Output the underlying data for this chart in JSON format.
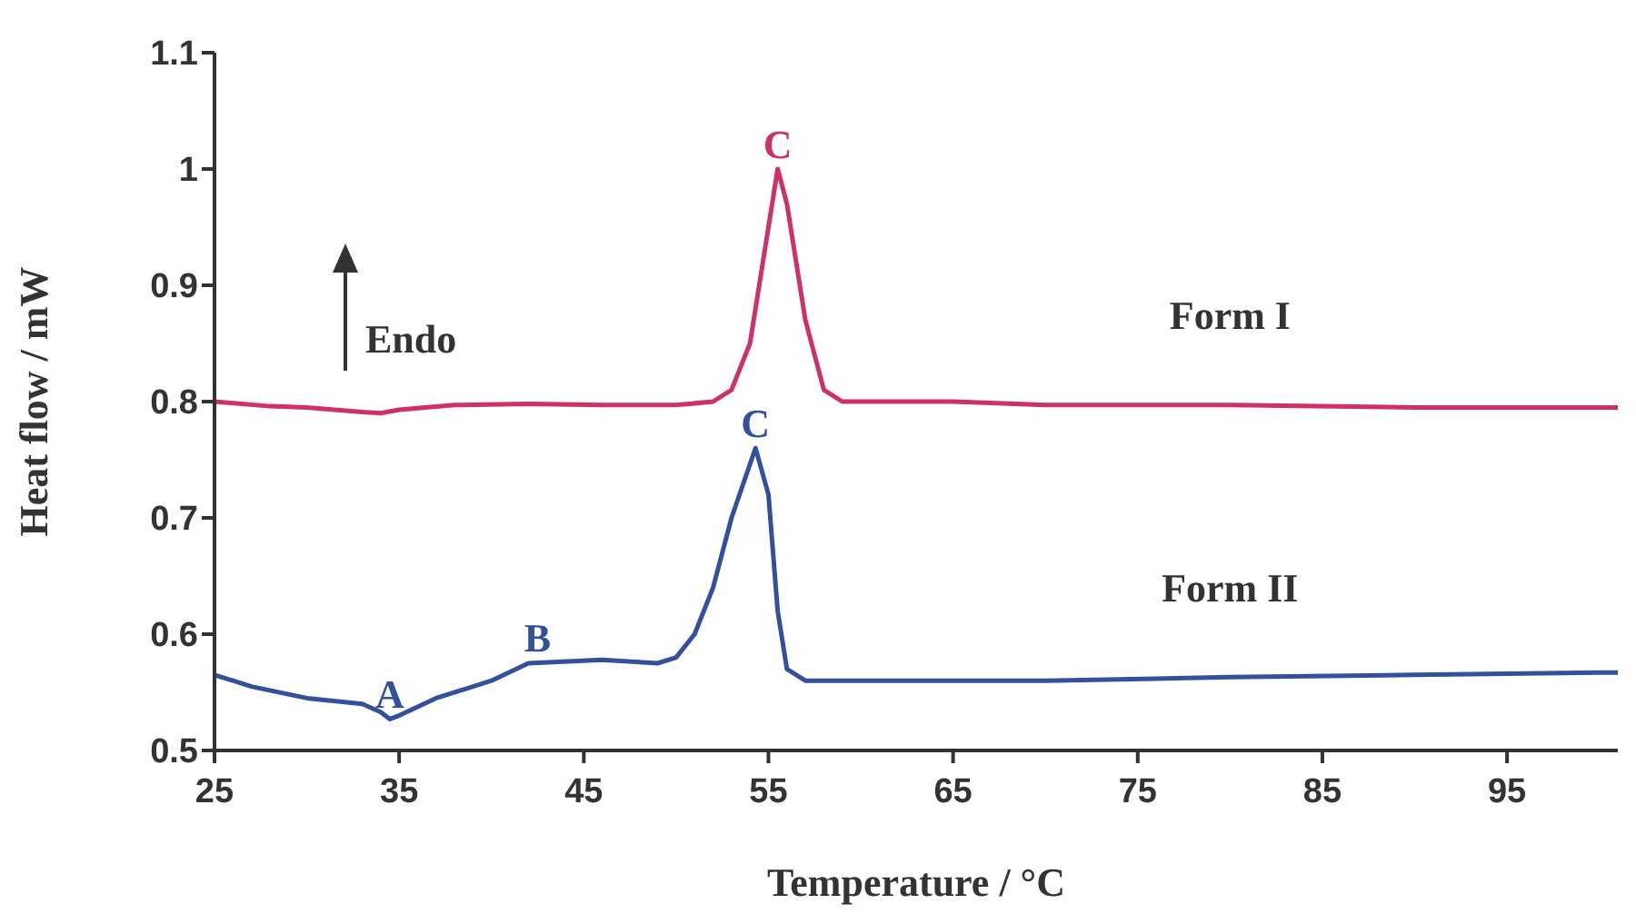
{
  "chart_data": {
    "type": "line",
    "xlabel": "Temperature / °C",
    "ylabel": "Heat flow / mW",
    "xlim": [
      25,
      101
    ],
    "xticks": [
      25,
      35,
      45,
      55,
      65,
      75,
      85,
      95
    ],
    "ylim": [
      0.5,
      1.1
    ],
    "yticks": [
      0.5,
      0.6,
      0.7,
      0.8,
      0.9,
      {
        "value": 1,
        "label": "1"
      },
      1.1
    ],
    "grid": false,
    "legend": false,
    "marker": "none",
    "line_style": "solid",
    "series": [
      {
        "name": "Form I",
        "color": "#d0306a",
        "x": [
          25,
          28,
          30,
          33,
          34,
          35,
          38,
          42,
          46,
          50,
          52,
          53,
          54,
          55,
          55.5,
          56,
          57,
          58,
          59,
          65,
          70,
          80,
          90,
          100,
          101
        ],
        "values": [
          0.8,
          0.796,
          0.795,
          0.791,
          0.79,
          0.793,
          0.797,
          0.798,
          0.797,
          0.797,
          0.8,
          0.81,
          0.85,
          0.95,
          1.0,
          0.97,
          0.87,
          0.81,
          0.8,
          0.8,
          0.797,
          0.797,
          0.795,
          0.795,
          0.795
        ]
      },
      {
        "name": "Form II",
        "color": "#33509a",
        "x": [
          25,
          27,
          30,
          33,
          34,
          34.5,
          35,
          37,
          40,
          42,
          46,
          49,
          50,
          51,
          52,
          53,
          54.3,
          55,
          55.5,
          56,
          57,
          60,
          70,
          80,
          90,
          100,
          101
        ],
        "values": [
          0.565,
          0.555,
          0.545,
          0.54,
          0.533,
          0.527,
          0.53,
          0.545,
          0.56,
          0.575,
          0.578,
          0.575,
          0.58,
          0.6,
          0.64,
          0.7,
          0.76,
          0.72,
          0.62,
          0.57,
          0.56,
          0.56,
          0.56,
          0.563,
          0.565,
          0.567,
          0.567
        ]
      }
    ],
    "annotations": [
      {
        "text": "C",
        "x": 55.5,
        "y": 1.0
      },
      {
        "text": "C",
        "x": 54.3,
        "y": 0.76
      },
      {
        "text": "A",
        "x": 34.5,
        "y": 0.527
      },
      {
        "text": "B",
        "x": 42.5,
        "y": 0.576
      },
      "Endo"
    ]
  }
}
